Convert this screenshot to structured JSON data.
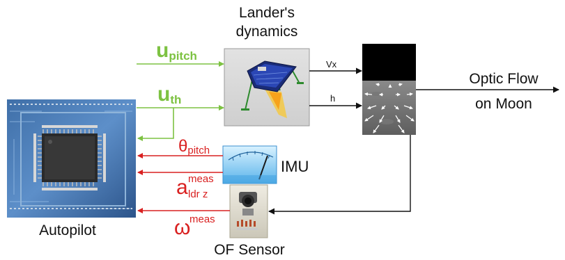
{
  "labels": {
    "lander_line1": "Lander's",
    "lander_line2": "dynamics",
    "optic_line1": "Optic Flow",
    "optic_line2": "on Moon",
    "imu": "IMU",
    "autopilot": "Autopilot",
    "of_sensor": "OF Sensor",
    "vx": "Vx",
    "h": "h"
  },
  "signals": {
    "u_pitch": {
      "base": "u",
      "sub": "pitch"
    },
    "u_th": {
      "base": "u",
      "sub": "th"
    },
    "theta_pitch": {
      "base": "θ",
      "sub": "pitch"
    },
    "a_meas": {
      "base": "a",
      "sup": "meas",
      "sub": "ldr z"
    },
    "omega_meas": {
      "base": "ω",
      "sup": "meas"
    }
  },
  "colors": {
    "green": "#7dc242",
    "red": "#d92020",
    "black": "#111111"
  },
  "icons": {
    "autopilot": "microcontroller-chip-icon",
    "lander": "lunar-lander-icon",
    "imu": "analog-gauge-icon",
    "of_sensor": "optic-flow-sensor-icon",
    "moon_view": "moon-surface-flow-icon"
  }
}
